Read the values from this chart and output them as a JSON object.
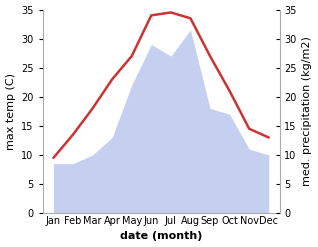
{
  "months": [
    "Jan",
    "Feb",
    "Mar",
    "Apr",
    "May",
    "Jun",
    "Jul",
    "Aug",
    "Sep",
    "Oct",
    "Nov",
    "Dec"
  ],
  "temperature": [
    9.5,
    13.5,
    18.0,
    23.0,
    27.0,
    34.0,
    34.5,
    33.5,
    27.0,
    21.0,
    14.5,
    13.0
  ],
  "precipitation": [
    8.5,
    8.5,
    10.0,
    13.0,
    22.0,
    29.0,
    27.0,
    31.5,
    18.0,
    17.0,
    11.0,
    10.0
  ],
  "temp_color": "#cc3333",
  "precip_color": "#c5cff0",
  "bg_color": "#ffffff",
  "fig_bg_color": "#ffffff",
  "ylim_left": [
    0,
    35
  ],
  "ylim_right": [
    0,
    35
  ],
  "yticks_left": [
    0,
    5,
    10,
    15,
    20,
    25,
    30,
    35
  ],
  "yticks_right": [
    0,
    5,
    10,
    15,
    20,
    25,
    30,
    35
  ],
  "xlabel": "date (month)",
  "ylabel_left": "max temp (C)",
  "ylabel_right": "med. precipitation (kg/m2)",
  "label_fontsize": 8,
  "tick_fontsize": 7,
  "axis_color": "#888888",
  "spine_color": "#aaaaaa"
}
